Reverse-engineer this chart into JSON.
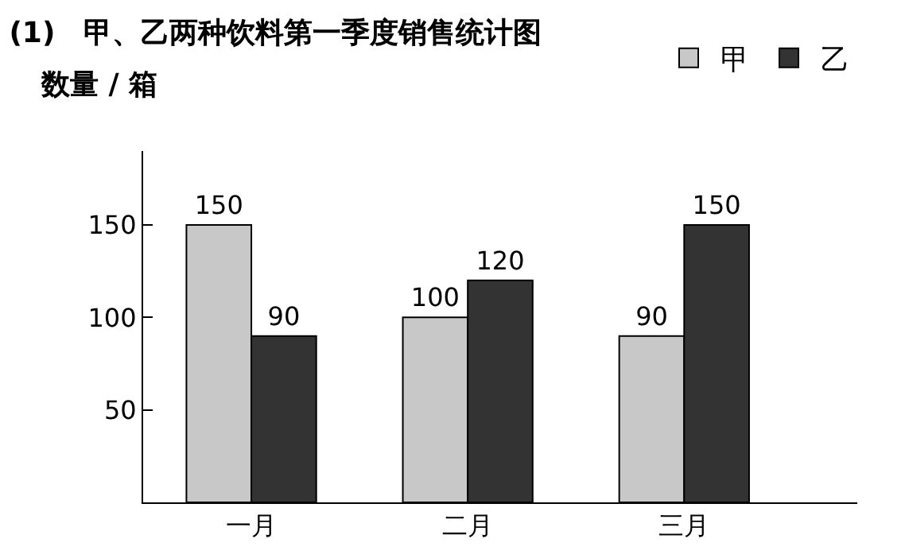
{
  "chart_data": {
    "type": "bar",
    "title": "(1)　甲、乙两种饮料第一季度销售统计图",
    "ylabel": "数量 / 箱",
    "categories": [
      "一月",
      "二月",
      "三月"
    ],
    "series": [
      {
        "name": "甲",
        "color": "#c8c8c8",
        "values": [
          150,
          100,
          90
        ]
      },
      {
        "name": "乙",
        "color": "#333333",
        "values": [
          90,
          120,
          150
        ]
      }
    ],
    "ylim": [
      0,
      190
    ],
    "yticks": [
      50,
      100,
      150
    ],
    "legend": "top right",
    "data_labels": true
  }
}
